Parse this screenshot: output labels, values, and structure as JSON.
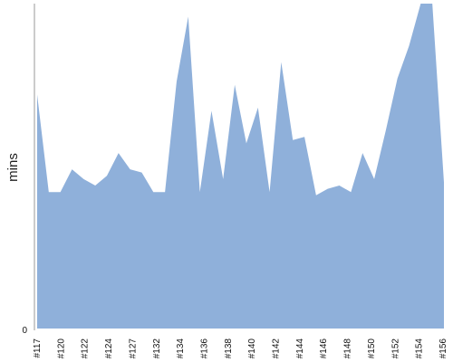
{
  "chart_data": {
    "type": "area",
    "title": "",
    "xlabel": "",
    "ylabel": "mins",
    "y_ticks": [
      "0"
    ],
    "ylim": [
      0,
      100
    ],
    "grid": false,
    "color": "#8fb0da",
    "x_tick_labels": [
      "#117",
      "#120",
      "#122",
      "#124",
      "#127",
      "#132",
      "#134",
      "#136",
      "#138",
      "#140",
      "#142",
      "#144",
      "#146",
      "#148",
      "#150",
      "#152",
      "#154",
      "#156"
    ],
    "series": [
      {
        "values": [
          72,
          42,
          42,
          49,
          46,
          44,
          47,
          54,
          49,
          48,
          42,
          42,
          76,
          96,
          42,
          67,
          46,
          75,
          57,
          68,
          42,
          82,
          58,
          59,
          41,
          43,
          44,
          42,
          54,
          46,
          61,
          77,
          87,
          100,
          100,
          45
        ]
      }
    ]
  }
}
